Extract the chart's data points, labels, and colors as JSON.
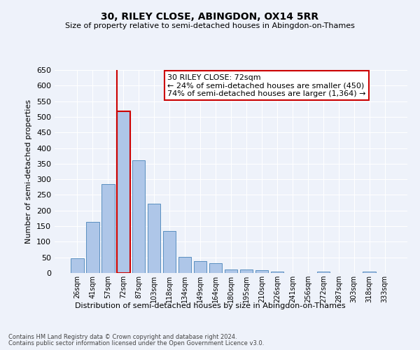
{
  "title": "30, RILEY CLOSE, ABINGDON, OX14 5RR",
  "subtitle": "Size of property relative to semi-detached houses in Abingdon-on-Thames",
  "xlabel_dist": "Distribution of semi-detached houses by size in Abingdon-on-Thames",
  "ylabel": "Number of semi-detached properties",
  "footer_line1": "Contains HM Land Registry data © Crown copyright and database right 2024.",
  "footer_line2": "Contains public sector information licensed under the Open Government Licence v3.0.",
  "annotation_title": "30 RILEY CLOSE: 72sqm",
  "annotation_line1": "← 24% of semi-detached houses are smaller (450)",
  "annotation_line2": "74% of semi-detached houses are larger (1,364) →",
  "property_size": 72,
  "bin_labels": [
    "26sqm",
    "41sqm",
    "57sqm",
    "72sqm",
    "87sqm",
    "103sqm",
    "118sqm",
    "134sqm",
    "149sqm",
    "164sqm",
    "180sqm",
    "195sqm",
    "210sqm",
    "226sqm",
    "241sqm",
    "256sqm",
    "272sqm",
    "287sqm",
    "303sqm",
    "318sqm",
    "333sqm"
  ],
  "bin_values": [
    47,
    163,
    285,
    518,
    360,
    223,
    135,
    52,
    38,
    32,
    12,
    12,
    10,
    5,
    0,
    0,
    5,
    0,
    0,
    5,
    0
  ],
  "bar_color": "#aec6e8",
  "bar_edge_color": "#5a8fc0",
  "highlight_bar_index": 3,
  "highlight_color": "#cc0000",
  "ylim": [
    0,
    650
  ],
  "yticks": [
    0,
    50,
    100,
    150,
    200,
    250,
    300,
    350,
    400,
    450,
    500,
    550,
    600,
    650
  ],
  "background_color": "#eef2fa",
  "grid_color": "#ffffff",
  "annotation_box_color": "#ffffff",
  "annotation_box_edge": "#cc0000"
}
